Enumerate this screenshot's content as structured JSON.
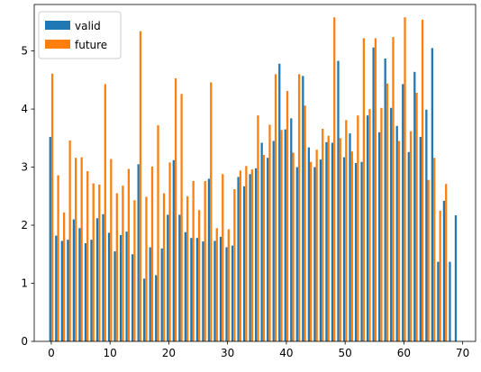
{
  "chart_data": {
    "type": "bar",
    "title": "",
    "xlabel": "",
    "ylabel": "",
    "xlim": [
      -2.9,
      72.2
    ],
    "ylim": [
      0,
      5.8
    ],
    "xticks": [
      0,
      10,
      20,
      30,
      40,
      50,
      60,
      70
    ],
    "yticks": [
      0,
      1,
      2,
      3,
      4,
      5
    ],
    "grid": false,
    "legend_position": "top-left",
    "x": [
      0,
      1,
      2,
      3,
      4,
      5,
      6,
      7,
      8,
      9,
      10,
      11,
      12,
      13,
      14,
      15,
      16,
      17,
      18,
      19,
      20,
      21,
      22,
      23,
      24,
      25,
      26,
      27,
      28,
      29,
      30,
      31,
      32,
      33,
      34,
      35,
      36,
      37,
      38,
      39,
      40,
      41,
      42,
      43,
      44,
      45,
      46,
      47,
      48,
      49,
      50,
      51,
      52,
      53,
      54,
      55,
      56,
      57,
      58,
      59,
      60,
      61,
      62,
      63,
      64,
      65,
      66,
      67,
      68,
      69
    ],
    "series": [
      {
        "name": "valid",
        "color": "#1f77b4",
        "values": [
          3.52,
          1.82,
          1.73,
          1.75,
          2.1,
          1.95,
          1.69,
          1.75,
          2.12,
          2.19,
          1.87,
          1.55,
          1.83,
          1.89,
          1.5,
          3.05,
          1.08,
          1.62,
          1.14,
          1.6,
          2.18,
          3.12,
          2.18,
          1.88,
          1.78,
          1.78,
          1.72,
          2.8,
          1.73,
          1.8,
          1.62,
          1.65,
          2.83,
          2.67,
          2.88,
          2.98,
          3.42,
          3.16,
          3.45,
          4.78,
          3.65,
          3.84,
          3.0,
          4.57,
          3.34,
          3.0,
          3.13,
          3.43,
          3.42,
          4.83,
          3.17,
          3.58,
          3.07,
          3.09,
          3.89,
          5.06,
          3.6,
          4.87,
          4.02,
          3.71,
          4.43,
          3.26,
          4.64,
          3.52,
          3.99,
          5.05,
          1.37,
          2.42,
          1.37,
          2.17
        ]
      },
      {
        "name": "future",
        "color": "#ff7f0e",
        "values": [
          4.61,
          2.86,
          2.22,
          3.46,
          3.16,
          3.17,
          2.93,
          2.72,
          2.7,
          4.43,
          3.14,
          2.55,
          2.68,
          2.97,
          2.43,
          5.34,
          2.49,
          3.01,
          3.72,
          2.55,
          3.08,
          4.53,
          4.26,
          2.5,
          2.76,
          2.26,
          2.76,
          4.46,
          1.95,
          2.88,
          1.93,
          2.62,
          2.94,
          3.02,
          2.96,
          3.89,
          3.21,
          3.73,
          4.6,
          3.64,
          4.31,
          3.25,
          4.6,
          4.06,
          3.09,
          3.3,
          3.66,
          3.54,
          5.58,
          3.5,
          3.81,
          3.27,
          3.89,
          5.22,
          4.0,
          5.22,
          4.02,
          4.44,
          5.24,
          3.45,
          5.58,
          3.62,
          4.28,
          5.54,
          2.78,
          3.16,
          2.25,
          2.71,
          0,
          0
        ]
      }
    ]
  }
}
